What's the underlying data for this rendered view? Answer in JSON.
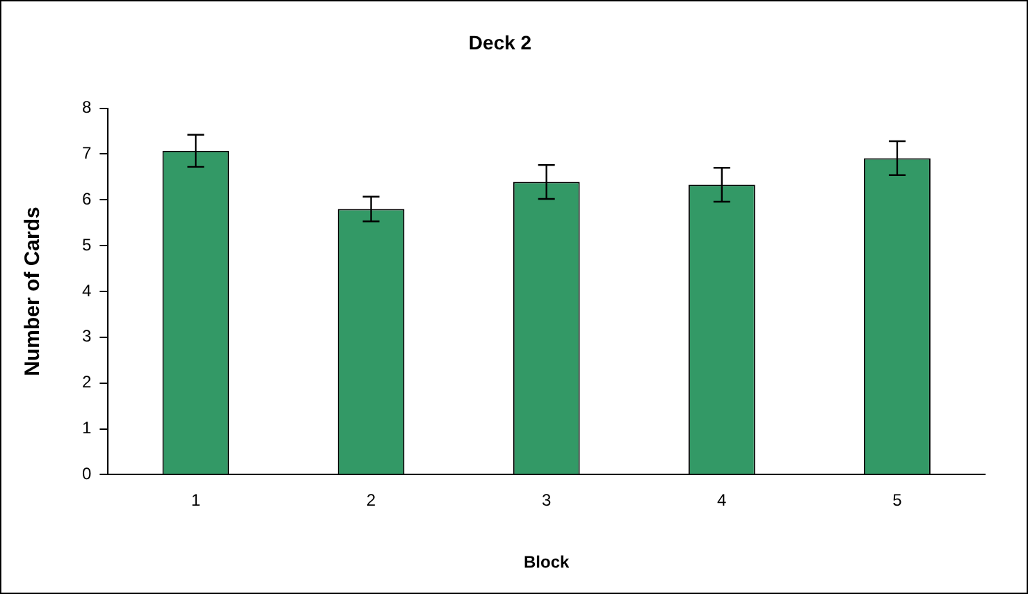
{
  "chart_data": {
    "type": "bar",
    "title": "Deck 2",
    "xlabel": "Block",
    "ylabel": "Number of Cards",
    "categories": [
      "1",
      "2",
      "3",
      "4",
      "5"
    ],
    "values": [
      7.07,
      5.8,
      6.39,
      6.33,
      6.91
    ],
    "errors": [
      0.35,
      0.27,
      0.37,
      0.37,
      0.37
    ],
    "color": "#339966",
    "ylim": [
      0,
      8
    ],
    "yticks": [
      0,
      1,
      2,
      3,
      4,
      5,
      6,
      7,
      8
    ],
    "grid": false,
    "legend": false
  }
}
